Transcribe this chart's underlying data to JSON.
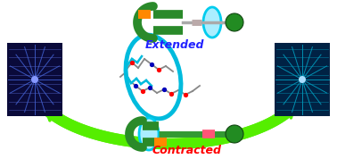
{
  "bg_color": "#ffffff",
  "arrow_color": "#55ee00",
  "extended_label": "Extended",
  "contracted_label": "Contracted",
  "extended_color": "#2222ff",
  "contracted_color": "#ff0000",
  "lasso_green": "#2a8a2a",
  "lasso_green_light": "#44aa44",
  "orange_color": "#ff8800",
  "pink_color": "#ff5577",
  "cyan_ring_face": "#aaeeff",
  "cyan_ring_edge": "#00ccee",
  "ball_green": "#228B22",
  "axle_gray": "#aaaaaa",
  "axle_green": "#339933",
  "mol_cyan": "#00bbdd",
  "mol_gray": "#888888",
  "left_bg": "#0a0a3a",
  "left_lines": "#4466dd",
  "right_bg": "#002244",
  "right_lines": "#00aacc"
}
